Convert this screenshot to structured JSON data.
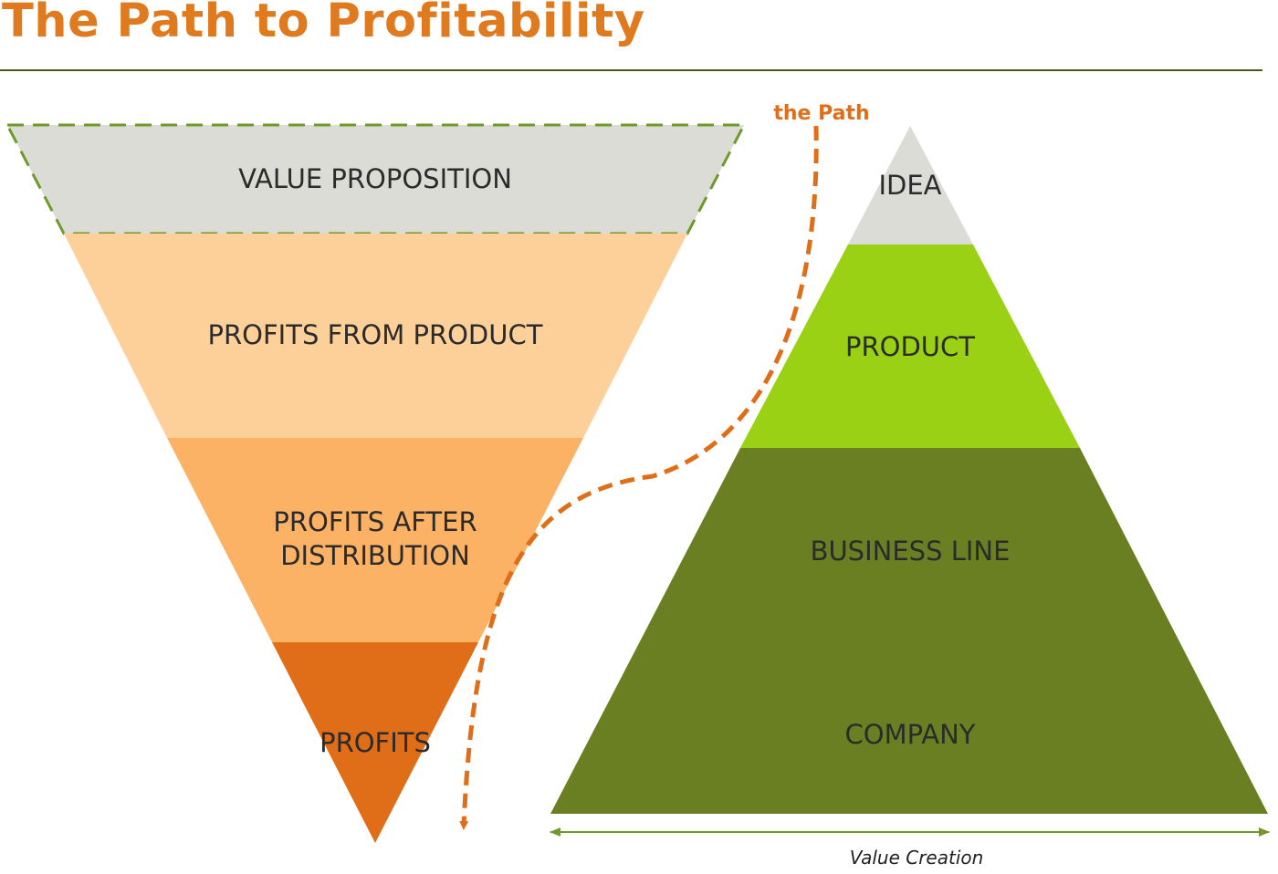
{
  "title": "The Path to Profitability",
  "colors": {
    "title": "#e07a1f",
    "rule": "#4a5a1a",
    "value_proposition": "#dcdcd6",
    "value_proposition_border": "#6f9a2a",
    "profits_from_product": "#fdd09a",
    "profits_after_distribution": "#fcb264",
    "profits": "#e06e18",
    "idea": "#dcdcd6",
    "product": "#9bd114",
    "business_line": "#6a7f22",
    "company": "#6a7f22",
    "path_arrow": "#e06e18",
    "axis": "#6f9a2a"
  },
  "funnel": {
    "layers": [
      {
        "label": "VALUE PROPOSITION"
      },
      {
        "label": "PROFITS FROM PRODUCT"
      },
      {
        "label_line1": "PROFITS AFTER",
        "label_line2": "DISTRIBUTION"
      },
      {
        "label": "PROFITS"
      }
    ]
  },
  "path": {
    "label": "the Path"
  },
  "pyramid": {
    "layers": [
      {
        "label": "IDEA"
      },
      {
        "label": "PRODUCT"
      },
      {
        "label": "BUSINESS LINE"
      },
      {
        "label": "COMPANY"
      }
    ],
    "axis_label": "Value Creation"
  }
}
